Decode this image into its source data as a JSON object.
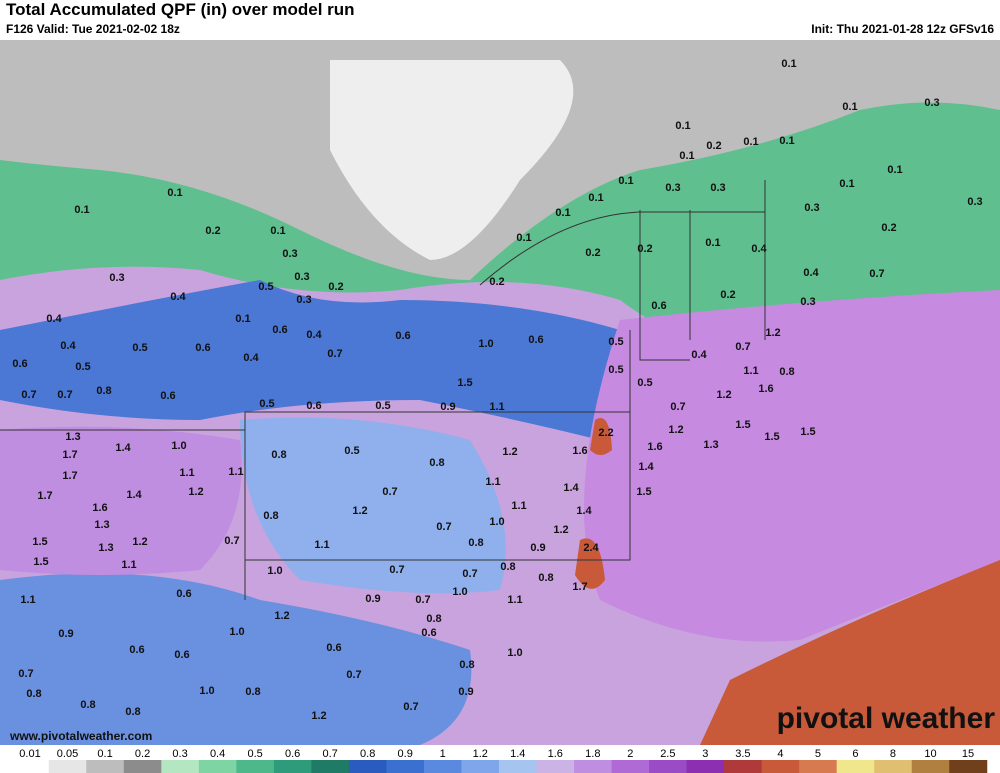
{
  "header": {
    "title": "Total Accumulated QPF (in) over model run",
    "valid": "F126 Valid: Tue 2021-02-02 18z",
    "init": "Init: Thu 2021-01-28 12z GFSv16"
  },
  "map": {
    "labels": [
      "0.1",
      "0.1",
      "0.2",
      "0.1",
      "0.3",
      "0.3",
      "0.4",
      "0.5",
      "0.3",
      "0.2",
      "0.3",
      "0.1",
      "0.4",
      "0.6",
      "0.4",
      "0.4",
      "0.5",
      "0.6",
      "0.4",
      "0.6",
      "0.5",
      "0.7",
      "0.6",
      "1.0",
      "0.6",
      "0.5",
      "0.7",
      "0.7",
      "0.8",
      "0.6",
      "0.5",
      "0.6",
      "0.5",
      "0.9",
      "1.1",
      "1.5",
      "0.5",
      "0.5",
      "0.7",
      "1.2",
      "0.7",
      "0.4",
      "1.1",
      "1.3",
      "1.7",
      "1.4",
      "1.0",
      "0.8",
      "0.5",
      "1.2",
      "1.6",
      "2.2",
      "1.6",
      "1.2",
      "1.3",
      "1.5",
      "1.5",
      "1.5",
      "1.7",
      "1.1",
      "1.1",
      "0.8",
      "1.1",
      "1.7",
      "1.4",
      "1.2",
      "0.7",
      "1.4",
      "1.4",
      "1.6",
      "1.3",
      "0.8",
      "1.2",
      "1.1",
      "1.4",
      "1.5",
      "0.7",
      "1.0",
      "1.2",
      "1.5",
      "1.3",
      "1.2",
      "0.7",
      "1.1",
      "0.8",
      "0.9",
      "2.4",
      "1.5",
      "1.1",
      "1.0",
      "0.7",
      "0.7",
      "0.8",
      "0.8",
      "1.7",
      "1.1",
      "0.6",
      "0.9",
      "0.7",
      "1.0",
      "1.1",
      "1.2",
      "0.8",
      "0.9",
      "1.0",
      "0.6",
      "0.6",
      "0.6",
      "0.6",
      "1.0",
      "0.8",
      "0.7",
      "0.7",
      "0.8",
      "1.0",
      "0.8",
      "0.8",
      "0.8",
      "0.7",
      "1.2",
      "0.9",
      "0.1",
      "0.1",
      "0.3",
      "0.1",
      "0.2",
      "0.1",
      "0.1",
      "0.1",
      "0.1",
      "0.3",
      "0.3",
      "0.1",
      "0.1",
      "0.1",
      "0.3",
      "0.3",
      "0.1",
      "0.1",
      "0.2",
      "0.2",
      "0.1",
      "0.4",
      "0.2",
      "0.2",
      "0.4",
      "0.7",
      "0.2",
      "0.6",
      "0.3",
      "1.2",
      "0.8",
      "1.6"
    ],
    "watermark": "pivotal weather",
    "site": "www.pivotalweather.com"
  },
  "legend": {
    "ticks": [
      "0.01",
      "0.05",
      "0.1",
      "0.2",
      "0.3",
      "0.4",
      "0.5",
      "0.6",
      "0.7",
      "0.8",
      "0.9",
      "1",
      "1.2",
      "1.4",
      "1.6",
      "1.8",
      "2",
      "2.5",
      "3",
      "3.5",
      "4",
      "5",
      "6",
      "8",
      "10",
      "15"
    ],
    "colors": [
      "#ffffff",
      "#e6e6e6",
      "#bdbdbd",
      "#8c8c8c",
      "#b3e6c1",
      "#7fd4a3",
      "#4db88a",
      "#2e9c7a",
      "#1f7a66",
      "#2a5cc0",
      "#3c70d0",
      "#5a8ae0",
      "#7fa5ea",
      "#a6c4f0",
      "#cbb3e6",
      "#c08ee0",
      "#b06ad6",
      "#9a4cc6",
      "#8c2fb0",
      "#b03a3a",
      "#c85a3a",
      "#d87a50",
      "#f0e68c",
      "#e0c070",
      "#b08040",
      "#70401c"
    ]
  }
}
